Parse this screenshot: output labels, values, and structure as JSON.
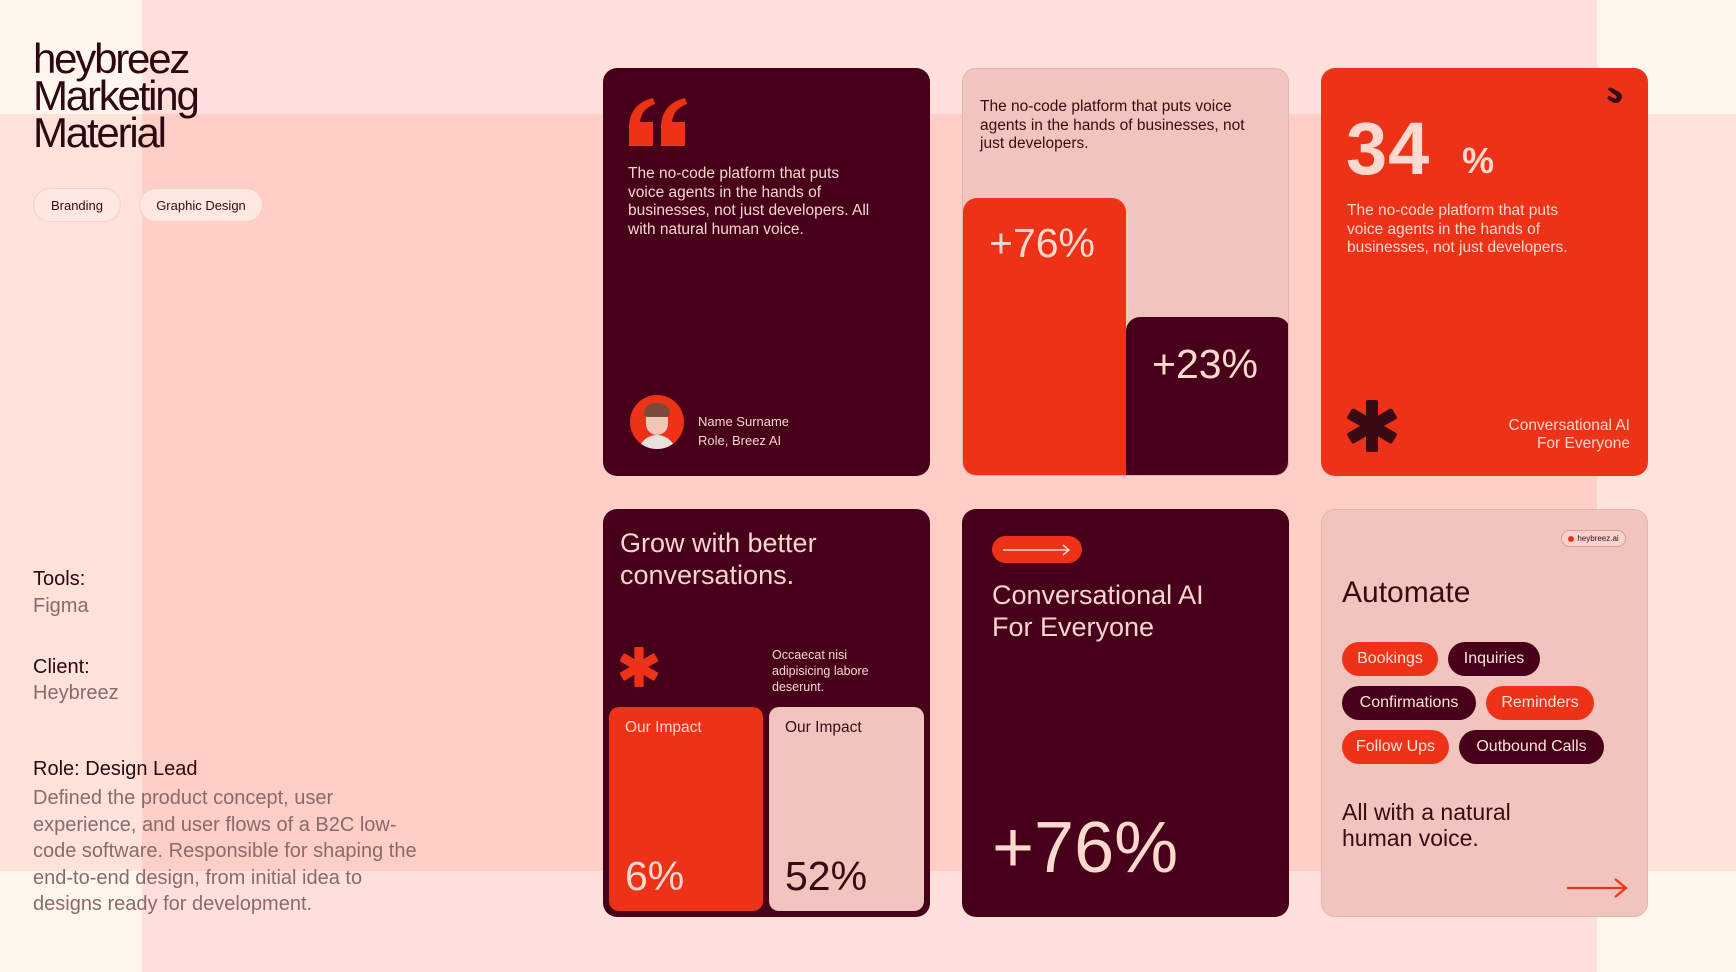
{
  "header": {
    "title_line1": "heybreez",
    "title_line2": "Marketing",
    "title_line3": "Material",
    "tags": [
      "Branding",
      "Graphic Design"
    ]
  },
  "meta": {
    "tools_label": "Tools:",
    "tools_value": "Figma",
    "client_label": "Client:",
    "client_value": "Heybreez",
    "role_label": "Role: Design Lead",
    "role_description": "Defined the product concept, user experience, and user flows of a B2C low-code software. Responsible for shaping the end-to-end design, from initial idea to designs ready for development."
  },
  "cards": {
    "quote": {
      "text": "The no-code platform that puts voice agents in the hands of businesses, not just developers. All with natural human voice.",
      "name": "Name Surname",
      "role": "Role, Breez AI"
    },
    "growth": {
      "text": "The no-code platform that puts voice agents in the hands of businesses, not just developers.",
      "stat_a": "+76%",
      "stat_b": "+23%"
    },
    "percent": {
      "number": "34",
      "unit": "%",
      "text": "The no-code platform that puts voice agents in the hands of businesses, not just developers.",
      "tagline_line1": "Conversational AI",
      "tagline_line2": "For Everyone"
    },
    "grow": {
      "headline": "Grow with better conversations.",
      "side_text": "Occaecat nisi adipisicing labore deserunt.",
      "impact_a_label": "Our Impact",
      "impact_a_value": "6%",
      "impact_b_label": "Our Impact",
      "impact_b_value": "52%"
    },
    "conversational": {
      "headline_line1": "Conversational AI",
      "headline_line2": "For Everyone",
      "stat": "+76%"
    },
    "automate": {
      "badge": "heybreez.ai",
      "headline": "Automate",
      "chips": [
        "Bookings",
        "Inquiries",
        "Confirmations",
        "Reminders",
        "Follow Ups",
        "Outbound Calls"
      ],
      "footer_line1": "All with a natural",
      "footer_line2": "human voice."
    }
  },
  "colors": {
    "brand_red": "#ee3218",
    "brand_dark": "#48001a",
    "light_pink": "#f2c4be",
    "background": "#fff6ee"
  }
}
